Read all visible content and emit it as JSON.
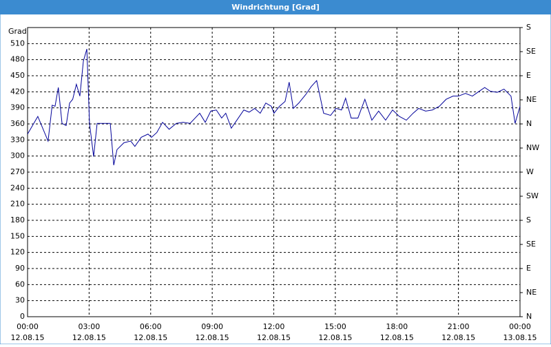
{
  "chart_data": {
    "type": "line",
    "title": "Windrichtung [Grad]",
    "y_label": "Grad",
    "color": "#000099",
    "grid": true,
    "x": [
      0,
      0.5,
      1.0,
      1.2,
      1.34,
      1.5,
      1.68,
      1.88,
      2.05,
      2.2,
      2.38,
      2.55,
      2.72,
      2.89,
      3.02,
      3.22,
      3.39,
      4.03,
      4.2,
      4.36,
      4.7,
      5.03,
      5.23,
      5.54,
      5.87,
      6.04,
      6.3,
      6.58,
      6.9,
      7.25,
      7.58,
      7.92,
      8.39,
      8.66,
      8.93,
      9.2,
      9.46,
      9.66,
      9.93,
      10.2,
      10.54,
      10.8,
      11.07,
      11.34,
      11.61,
      11.88,
      12.01,
      12.28,
      12.55,
      12.75,
      12.95,
      13.22,
      13.56,
      13.83,
      14.09,
      14.43,
      14.77,
      15.03,
      15.3,
      15.5,
      15.77,
      16.1,
      16.44,
      16.78,
      17.11,
      17.45,
      17.79,
      18.12,
      18.46,
      18.79,
      19.06,
      19.4,
      19.73,
      20.07,
      20.4,
      20.74,
      21.0,
      21.34,
      21.68,
      22.01,
      22.28,
      22.55,
      22.89,
      23.22,
      23.56,
      23.76,
      24.0
    ],
    "values": [
      341,
      374,
      328,
      395,
      393,
      428,
      361,
      357,
      399,
      406,
      434,
      412,
      477,
      500,
      361,
      299,
      361,
      361,
      283,
      312,
      325,
      328,
      318,
      335,
      341,
      335,
      344,
      363,
      350,
      361,
      363,
      361,
      380,
      363,
      384,
      386,
      371,
      380,
      352,
      367,
      386,
      382,
      389,
      380,
      399,
      393,
      380,
      393,
      402,
      438,
      389,
      399,
      415,
      430,
      441,
      380,
      376,
      389,
      386,
      408,
      371,
      371,
      406,
      367,
      384,
      367,
      386,
      374,
      367,
      380,
      389,
      384,
      386,
      393,
      406,
      412,
      412,
      417,
      412,
      421,
      428,
      421,
      419,
      425,
      412,
      361,
      393
    ],
    "xlim": [
      0,
      24
    ],
    "xticks": [
      {
        "value": 0,
        "label": "00:00",
        "date": "12.08.15"
      },
      {
        "value": 3,
        "label": "03:00",
        "date": "12.08.15"
      },
      {
        "value": 6,
        "label": "06:00",
        "date": "12.08.15"
      },
      {
        "value": 9,
        "label": "09:00",
        "date": "12.08.15"
      },
      {
        "value": 12,
        "label": "12:00",
        "date": "12.08.15"
      },
      {
        "value": 15,
        "label": "15:00",
        "date": "12.08.15"
      },
      {
        "value": 18,
        "label": "18:00",
        "date": "12.08.15"
      },
      {
        "value": 21,
        "label": "21:00",
        "date": "12.08.15"
      },
      {
        "value": 24,
        "label": "00:00",
        "date": "13.08.15"
      }
    ],
    "ylim": [
      0,
      540
    ],
    "yticks": [
      0,
      30,
      60,
      90,
      120,
      150,
      180,
      210,
      240,
      270,
      300,
      330,
      360,
      390,
      420,
      450,
      480,
      510
    ],
    "y2lim": [
      0,
      540
    ],
    "y2ticks": [
      {
        "value": 0,
        "label": "N"
      },
      {
        "value": 45,
        "label": "NE"
      },
      {
        "value": 90,
        "label": "E"
      },
      {
        "value": 135,
        "label": "SE"
      },
      {
        "value": 180,
        "label": "S"
      },
      {
        "value": 225,
        "label": "SW"
      },
      {
        "value": 270,
        "label": "W"
      },
      {
        "value": 315,
        "label": "NW"
      },
      {
        "value": 360,
        "label": "N"
      },
      {
        "value": 405,
        "label": "NE"
      },
      {
        "value": 450,
        "label": "E"
      },
      {
        "value": 495,
        "label": "SE"
      },
      {
        "value": 540,
        "label": "S"
      }
    ]
  }
}
